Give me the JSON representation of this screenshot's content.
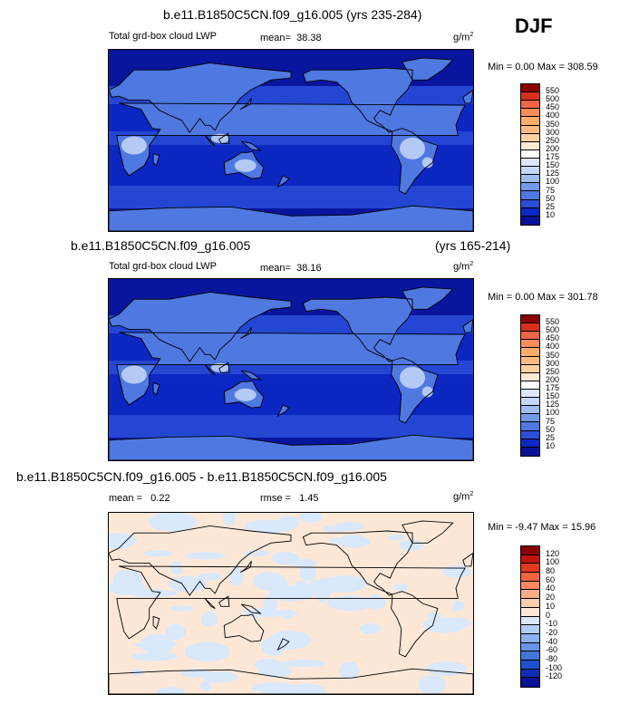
{
  "season": "DJF",
  "units": "g/m",
  "units_sup": "2",
  "panels": [
    {
      "header": "b.e11.B1850C5CN.f09_g16.005 (yrs 235-284)",
      "variable": "Total grd-box cloud LWP",
      "stat1_label": "mean=",
      "stat1_value": "38.38",
      "minmax_text": "Min =   0.00 Max = 308.59",
      "levels": [
        "550",
        "500",
        "450",
        "400",
        "350",
        "300",
        "250",
        "200",
        "175",
        "150",
        "125",
        "100",
        "75",
        "50",
        "25",
        "10"
      ],
      "colors": [
        "#8b0000",
        "#d7301f",
        "#ef6548",
        "#fc8d59",
        "#fdae6b",
        "#fdbb84",
        "#fdd0a2",
        "#fde8d4",
        "#ffffff",
        "#dfe8fb",
        "#c6d8f8",
        "#9fbcf3",
        "#7499ea",
        "#4f78e1",
        "#2a4fd6",
        "#0d27c2",
        "#071394"
      ],
      "field": "lwp"
    },
    {
      "header_left": "b.e11.B1850C5CN.f09_g16.005",
      "header_right": "(yrs 165-214)",
      "variable": "Total grd-box cloud LWP",
      "stat1_label": "mean=",
      "stat1_value": "38.16",
      "minmax_text": "Min =   0.00 Max = 301.78",
      "levels": [
        "550",
        "500",
        "450",
        "400",
        "350",
        "300",
        "250",
        "200",
        "175",
        "150",
        "125",
        "100",
        "75",
        "50",
        "25",
        "10"
      ],
      "colors": [
        "#8b0000",
        "#d7301f",
        "#ef6548",
        "#fc8d59",
        "#fdae6b",
        "#fdbb84",
        "#fdd0a2",
        "#fde8d4",
        "#ffffff",
        "#dfe8fb",
        "#c6d8f8",
        "#9fbcf3",
        "#7499ea",
        "#4f78e1",
        "#2a4fd6",
        "#0d27c2",
        "#071394"
      ],
      "field": "lwp"
    },
    {
      "header": "b.e11.B1850C5CN.f09_g16.005 - b.e11.B1850C5CN.f09_g16.005",
      "stat1_label": "mean =",
      "stat1_value": "0.22",
      "stat2_label": "rmse =",
      "stat2_value": "1.45",
      "minmax_text": "Min = -9.47 Max = 15.96",
      "levels": [
        "120",
        "100",
        "80",
        "60",
        "40",
        "20",
        "10",
        "0",
        "-10",
        "-20",
        "-40",
        "-60",
        "-80",
        "-100",
        "-120"
      ],
      "colors": [
        "#8b0000",
        "#c0150c",
        "#e0391e",
        "#f06440",
        "#fb8a5e",
        "#fdac85",
        "#fdcdb0",
        "#fde8d8",
        "#d9e8fb",
        "#b3cdf5",
        "#8cb1ee",
        "#6794e4",
        "#4274d8",
        "#1f50c9",
        "#0e2db4",
        "#071394"
      ],
      "field": "diff"
    }
  ]
}
